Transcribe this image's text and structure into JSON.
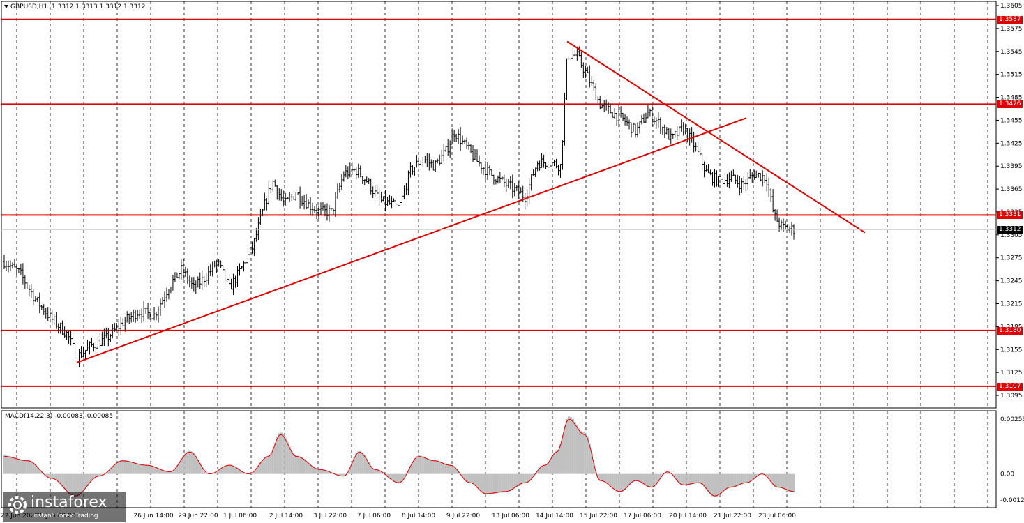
{
  "header": {
    "symbol": "GBPUSD,H1",
    "ohlc": "1.3312 1.3313 1.3312 1.3312"
  },
  "macd": {
    "label": "MACD(14,22,3) -0.00083 -0.00085",
    "axis_labels": [
      "0.00253",
      "0.00",
      "-0.00122"
    ]
  },
  "logo": {
    "name": "instaforex",
    "tagline": "Instant Forex Trading"
  },
  "colors": {
    "level_line": "#e00000",
    "candle": "#000000",
    "histogram": "#c0c0c0",
    "signal_line": "#e00000"
  },
  "current_price": "1.3312",
  "chart_data": {
    "type": "candlestick",
    "symbol": "GBPUSD",
    "timeframe": "H1",
    "ylim": [
      1.3085,
      1.3605
    ],
    "y_ticks": [
      "1.3605",
      "1.3575",
      "1.3545",
      "1.3515",
      "1.3485",
      "1.3455",
      "1.3425",
      "1.3395",
      "1.3365",
      "1.3335",
      "1.3305",
      "1.3275",
      "1.3245",
      "1.3215",
      "1.3185",
      "1.3155",
      "1.3125",
      "1.3095"
    ],
    "x_ticks": [
      "22 Jun 2025",
      "25 Jun 08:00",
      "26 Jun 14:00",
      "29 Jun 22:00",
      "1 Jul 06:00",
      "2 Jul 14:00",
      "3 Jul 22:00",
      "7 Jul 06:00",
      "8 Jul 14:00",
      "9 Jul 22:00",
      "13 Jul 06:00",
      "14 Jul 14:00",
      "15 Jul 22:00",
      "17 Jul 06:00",
      "20 Jul 14:00",
      "21 Jul 22:00",
      "23 Jul 06:00"
    ],
    "levels": [
      {
        "label": "1.3587",
        "value": 1.3587
      },
      {
        "label": "1.3476",
        "value": 1.3476
      },
      {
        "label": "1.3331",
        "value": 1.3331
      },
      {
        "label": "1.3180",
        "value": 1.318
      },
      {
        "label": "1.3107",
        "value": 1.3107
      }
    ],
    "trendlines": [
      {
        "name": "uptrend",
        "from": {
          "bar": 0.092,
          "price": 1.3138
        },
        "to": {
          "bar": 0.915,
          "price": 1.3458
        }
      },
      {
        "name": "downtrend",
        "from": {
          "bar": 0.713,
          "price": 1.3558
        },
        "to": {
          "bar": 1.0,
          "price": 1.3308
        }
      }
    ],
    "price_path": [
      [
        0,
        1.327
      ],
      [
        0.02,
        1.3255
      ],
      [
        0.04,
        1.322
      ],
      [
        0.06,
        1.3195
      ],
      [
        0.08,
        1.3175
      ],
      [
        0.092,
        1.3145
      ],
      [
        0.11,
        1.316
      ],
      [
        0.13,
        1.317
      ],
      [
        0.15,
        1.319
      ],
      [
        0.17,
        1.3205
      ],
      [
        0.19,
        1.32
      ],
      [
        0.21,
        1.324
      ],
      [
        0.225,
        1.326
      ],
      [
        0.24,
        1.3235
      ],
      [
        0.255,
        1.325
      ],
      [
        0.27,
        1.327
      ],
      [
        0.285,
        1.3235
      ],
      [
        0.3,
        1.326
      ],
      [
        0.315,
        1.329
      ],
      [
        0.33,
        1.3345
      ],
      [
        0.34,
        1.3375
      ],
      [
        0.355,
        1.3345
      ],
      [
        0.37,
        1.336
      ],
      [
        0.385,
        1.3345
      ],
      [
        0.4,
        1.3335
      ],
      [
        0.415,
        1.3335
      ],
      [
        0.43,
        1.3385
      ],
      [
        0.445,
        1.339
      ],
      [
        0.46,
        1.3375
      ],
      [
        0.475,
        1.335
      ],
      [
        0.49,
        1.3345
      ],
      [
        0.5,
        1.334
      ],
      [
        0.515,
        1.339
      ],
      [
        0.53,
        1.3405
      ],
      [
        0.545,
        1.3395
      ],
      [
        0.56,
        1.3415
      ],
      [
        0.57,
        1.344
      ],
      [
        0.585,
        1.342
      ],
      [
        0.6,
        1.34
      ],
      [
        0.615,
        1.3385
      ],
      [
        0.63,
        1.3375
      ],
      [
        0.645,
        1.3365
      ],
      [
        0.66,
        1.3355
      ],
      [
        0.675,
        1.34
      ],
      [
        0.69,
        1.34
      ],
      [
        0.705,
        1.3395
      ],
      [
        0.713,
        1.354
      ],
      [
        0.725,
        1.354
      ],
      [
        0.74,
        1.351
      ],
      [
        0.755,
        1.3475
      ],
      [
        0.77,
        1.3465
      ],
      [
        0.785,
        1.3455
      ],
      [
        0.8,
        1.344
      ],
      [
        0.815,
        1.3465
      ],
      [
        0.83,
        1.345
      ],
      [
        0.845,
        1.343
      ],
      [
        0.86,
        1.3445
      ],
      [
        0.875,
        1.342
      ],
      [
        0.89,
        1.3385
      ],
      [
        0.905,
        1.3375
      ],
      [
        0.92,
        1.338
      ],
      [
        0.935,
        1.337
      ],
      [
        0.95,
        1.3385
      ],
      [
        0.965,
        1.338
      ],
      [
        0.975,
        1.333
      ],
      [
        0.985,
        1.3315
      ],
      [
        1.0,
        1.3312
      ]
    ],
    "macd_path": [
      [
        0,
        0.0008
      ],
      [
        0.03,
        0.0006
      ],
      [
        0.06,
        -0.0002
      ],
      [
        0.09,
        -0.001
      ],
      [
        0.12,
        -0.0001
      ],
      [
        0.15,
        0.0006
      ],
      [
        0.18,
        0.0004
      ],
      [
        0.21,
        0.0001
      ],
      [
        0.235,
        0.001
      ],
      [
        0.26,
        0.0
      ],
      [
        0.285,
        0.0004
      ],
      [
        0.31,
        0.0
      ],
      [
        0.335,
        0.0008
      ],
      [
        0.35,
        0.0018
      ],
      [
        0.37,
        0.0008
      ],
      [
        0.4,
        0.0002
      ],
      [
        0.43,
        -0.0001
      ],
      [
        0.45,
        0.001
      ],
      [
        0.47,
        0.0002
      ],
      [
        0.5,
        -0.0004
      ],
      [
        0.525,
        0.0008
      ],
      [
        0.545,
        0.0006
      ],
      [
        0.565,
        0.0004
      ],
      [
        0.59,
        -0.0004
      ],
      [
        0.61,
        -0.0009
      ],
      [
        0.635,
        -0.0008
      ],
      [
        0.66,
        -0.0004
      ],
      [
        0.685,
        0.0004
      ],
      [
        0.7,
        0.001
      ],
      [
        0.715,
        0.0025
      ],
      [
        0.735,
        0.0018
      ],
      [
        0.755,
        -0.0003
      ],
      [
        0.78,
        -0.0008
      ],
      [
        0.8,
        -0.0003
      ],
      [
        0.82,
        -0.0006
      ],
      [
        0.84,
        0.0001
      ],
      [
        0.86,
        -0.0005
      ],
      [
        0.88,
        -0.0004
      ],
      [
        0.9,
        -0.001
      ],
      [
        0.92,
        -0.0006
      ],
      [
        0.94,
        -0.0004
      ],
      [
        0.96,
        0.0
      ],
      [
        0.98,
        -0.0006
      ],
      [
        1.0,
        -0.0008
      ]
    ]
  }
}
